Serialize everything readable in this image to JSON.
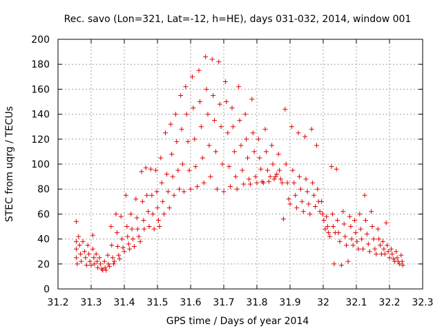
{
  "chart_data": {
    "type": "scatter",
    "title": "Rec. savo (Lon=321, Lat=-12, h=HE), days 031-032, 2014, window 001",
    "xlabel": "GPS time / Days of year 2014",
    "ylabel": "STEC from uqrg / TECUs",
    "xlim": [
      31.2,
      32.3
    ],
    "ylim": [
      0,
      200
    ],
    "xticks": [
      "31.2",
      "31.3",
      "31.4",
      "31.5",
      "31.6",
      "31.7",
      "31.8",
      "31.9",
      "32",
      "32.1",
      "32.2",
      "32.3"
    ],
    "yticks": [
      "0",
      "20",
      "40",
      "60",
      "80",
      "100",
      "120",
      "140",
      "160",
      "180",
      "200"
    ],
    "grid": true,
    "marker": "+",
    "series_color": "#e00000",
    "points": [
      [
        31.255,
        54
      ],
      [
        31.255,
        38
      ],
      [
        31.255,
        32
      ],
      [
        31.255,
        25
      ],
      [
        31.258,
        20
      ],
      [
        31.262,
        42
      ],
      [
        31.265,
        35
      ],
      [
        31.268,
        28
      ],
      [
        31.27,
        22
      ],
      [
        31.275,
        38
      ],
      [
        31.28,
        30
      ],
      [
        31.283,
        25
      ],
      [
        31.286,
        19
      ],
      [
        31.29,
        35
      ],
      [
        31.293,
        28
      ],
      [
        31.296,
        22
      ],
      [
        31.3,
        19
      ],
      [
        31.305,
        43
      ],
      [
        31.305,
        32
      ],
      [
        31.308,
        25
      ],
      [
        31.31,
        20
      ],
      [
        31.315,
        28
      ],
      [
        31.318,
        22
      ],
      [
        31.32,
        17
      ],
      [
        31.325,
        25
      ],
      [
        31.328,
        20
      ],
      [
        31.332,
        16
      ],
      [
        31.335,
        15
      ],
      [
        31.34,
        22
      ],
      [
        31.342,
        17
      ],
      [
        31.345,
        15
      ],
      [
        31.35,
        27
      ],
      [
        31.352,
        20
      ],
      [
        31.355,
        18
      ],
      [
        31.36,
        50
      ],
      [
        31.362,
        35
      ],
      [
        31.365,
        25
      ],
      [
        31.368,
        20
      ],
      [
        31.37,
        22
      ],
      [
        31.375,
        60
      ],
      [
        31.378,
        45
      ],
      [
        31.38,
        34
      ],
      [
        31.383,
        27
      ],
      [
        31.386,
        24
      ],
      [
        31.39,
        58
      ],
      [
        31.393,
        40
      ],
      [
        31.396,
        33
      ],
      [
        31.4,
        30
      ],
      [
        31.405,
        75
      ],
      [
        31.408,
        50
      ],
      [
        31.41,
        42
      ],
      [
        31.413,
        36
      ],
      [
        31.416,
        32
      ],
      [
        31.42,
        60
      ],
      [
        31.423,
        48
      ],
      [
        31.426,
        40
      ],
      [
        31.43,
        34
      ],
      [
        31.435,
        72
      ],
      [
        31.438,
        57
      ],
      [
        31.44,
        48
      ],
      [
        31.444,
        42
      ],
      [
        31.448,
        38
      ],
      [
        31.452,
        94
      ],
      [
        31.455,
        70
      ],
      [
        31.458,
        55
      ],
      [
        31.46,
        48
      ],
      [
        31.465,
        97
      ],
      [
        31.468,
        75
      ],
      [
        31.472,
        62
      ],
      [
        31.475,
        50
      ],
      [
        31.48,
        96
      ],
      [
        31.483,
        75
      ],
      [
        31.486,
        60
      ],
      [
        31.49,
        48
      ],
      [
        31.495,
        95
      ],
      [
        31.498,
        78
      ],
      [
        31.5,
        65
      ],
      [
        31.503,
        55
      ],
      [
        31.506,
        50
      ],
      [
        31.51,
        105
      ],
      [
        31.513,
        85
      ],
      [
        31.516,
        70
      ],
      [
        31.52,
        60
      ],
      [
        31.524,
        125
      ],
      [
        31.528,
        92
      ],
      [
        31.532,
        78
      ],
      [
        31.536,
        65
      ],
      [
        31.54,
        132
      ],
      [
        31.543,
        108
      ],
      [
        31.546,
        90
      ],
      [
        31.55,
        75
      ],
      [
        31.555,
        140
      ],
      [
        31.558,
        118
      ],
      [
        31.562,
        95
      ],
      [
        31.566,
        80
      ],
      [
        31.57,
        155
      ],
      [
        31.573,
        128
      ],
      [
        31.576,
        100
      ],
      [
        31.58,
        78
      ],
      [
        31.585,
        162
      ],
      [
        31.588,
        140
      ],
      [
        31.592,
        118
      ],
      [
        31.596,
        95
      ],
      [
        31.6,
        80
      ],
      [
        31.605,
        170
      ],
      [
        31.608,
        145
      ],
      [
        31.612,
        120
      ],
      [
        31.615,
        98
      ],
      [
        31.62,
        82
      ],
      [
        31.625,
        175
      ],
      [
        31.628,
        150
      ],
      [
        31.632,
        130
      ],
      [
        31.636,
        105
      ],
      [
        31.64,
        85
      ],
      [
        31.645,
        186
      ],
      [
        31.648,
        160
      ],
      [
        31.652,
        140
      ],
      [
        31.656,
        115
      ],
      [
        31.66,
        90
      ],
      [
        31.665,
        184
      ],
      [
        31.668,
        155
      ],
      [
        31.672,
        135
      ],
      [
        31.676,
        110
      ],
      [
        31.68,
        80
      ],
      [
        31.685,
        182
      ],
      [
        31.688,
        148
      ],
      [
        31.692,
        130
      ],
      [
        31.696,
        100
      ],
      [
        31.7,
        78
      ],
      [
        31.705,
        166
      ],
      [
        31.708,
        150
      ],
      [
        31.712,
        125
      ],
      [
        31.716,
        98
      ],
      [
        31.72,
        82
      ],
      [
        31.725,
        145
      ],
      [
        31.728,
        130
      ],
      [
        31.732,
        110
      ],
      [
        31.736,
        90
      ],
      [
        31.74,
        80
      ],
      [
        31.745,
        162
      ],
      [
        31.748,
        135
      ],
      [
        31.752,
        115
      ],
      [
        31.756,
        95
      ],
      [
        31.76,
        84
      ],
      [
        31.765,
        140
      ],
      [
        31.768,
        120
      ],
      [
        31.772,
        105
      ],
      [
        31.776,
        88
      ],
      [
        31.78,
        84
      ],
      [
        31.785,
        152
      ],
      [
        31.788,
        125
      ],
      [
        31.792,
        110
      ],
      [
        31.796,
        90
      ],
      [
        31.8,
        85
      ],
      [
        31.805,
        120
      ],
      [
        31.808,
        105
      ],
      [
        31.812,
        96
      ],
      [
        31.816,
        86
      ],
      [
        31.82,
        85
      ],
      [
        31.825,
        128
      ],
      [
        31.828,
        110
      ],
      [
        31.832,
        95
      ],
      [
        31.836,
        86
      ],
      [
        31.84,
        90
      ],
      [
        31.845,
        115
      ],
      [
        31.848,
        100
      ],
      [
        31.852,
        88
      ],
      [
        31.856,
        90
      ],
      [
        31.86,
        92
      ],
      [
        31.865,
        108
      ],
      [
        31.868,
        95
      ],
      [
        31.872,
        88
      ],
      [
        31.876,
        85
      ],
      [
        31.88,
        56
      ],
      [
        31.885,
        144
      ],
      [
        31.888,
        100
      ],
      [
        31.892,
        85
      ],
      [
        31.896,
        72
      ],
      [
        31.9,
        68
      ],
      [
        31.905,
        130
      ],
      [
        31.908,
        95
      ],
      [
        31.912,
        85
      ],
      [
        31.916,
        75
      ],
      [
        31.92,
        65
      ],
      [
        31.925,
        125
      ],
      [
        31.928,
        90
      ],
      [
        31.932,
        80
      ],
      [
        31.936,
        70
      ],
      [
        31.94,
        62
      ],
      [
        31.945,
        122
      ],
      [
        31.948,
        88
      ],
      [
        31.952,
        78
      ],
      [
        31.956,
        68
      ],
      [
        31.96,
        60
      ],
      [
        31.965,
        128
      ],
      [
        31.968,
        85
      ],
      [
        31.972,
        75
      ],
      [
        31.976,
        66
      ],
      [
        31.98,
        115
      ],
      [
        31.983,
        80
      ],
      [
        31.986,
        70
      ],
      [
        31.99,
        62
      ],
      [
        31.995,
        70
      ],
      [
        31.998,
        60
      ],
      [
        32.002,
        55
      ],
      [
        32.006,
        48
      ],
      [
        32.01,
        58
      ],
      [
        32.013,
        50
      ],
      [
        32.016,
        45
      ],
      [
        32.02,
        42
      ],
      [
        32.025,
        98
      ],
      [
        32.028,
        60
      ],
      [
        32.03,
        50
      ],
      [
        32.033,
        20
      ],
      [
        32.036,
        45
      ],
      [
        32.04,
        96
      ],
      [
        32.043,
        55
      ],
      [
        32.046,
        45
      ],
      [
        32.05,
        38
      ],
      [
        32.055,
        19
      ],
      [
        32.06,
        62
      ],
      [
        32.063,
        52
      ],
      [
        32.066,
        42
      ],
      [
        32.07,
        35
      ],
      [
        32.075,
        22
      ],
      [
        32.08,
        58
      ],
      [
        32.083,
        50
      ],
      [
        32.086,
        40
      ],
      [
        32.09,
        35
      ],
      [
        32.095,
        55
      ],
      [
        32.098,
        45
      ],
      [
        32.102,
        38
      ],
      [
        32.106,
        32
      ],
      [
        32.11,
        60
      ],
      [
        32.113,
        48
      ],
      [
        32.116,
        40
      ],
      [
        32.12,
        32
      ],
      [
        32.125,
        75
      ],
      [
        32.128,
        55
      ],
      [
        32.132,
        44
      ],
      [
        32.136,
        36
      ],
      [
        32.14,
        30
      ],
      [
        32.145,
        62
      ],
      [
        32.148,
        50
      ],
      [
        32.152,
        40
      ],
      [
        32.156,
        32
      ],
      [
        32.16,
        28
      ],
      [
        32.165,
        48
      ],
      [
        32.168,
        40
      ],
      [
        32.172,
        35
      ],
      [
        32.176,
        28
      ],
      [
        32.18,
        38
      ],
      [
        32.183,
        32
      ],
      [
        32.186,
        28
      ],
      [
        32.19,
        53
      ],
      [
        32.193,
        35
      ],
      [
        32.196,
        30
      ],
      [
        32.2,
        25
      ],
      [
        32.205,
        32
      ],
      [
        32.208,
        28
      ],
      [
        32.212,
        24
      ],
      [
        32.216,
        22
      ],
      [
        32.22,
        30
      ],
      [
        32.223,
        25
      ],
      [
        32.226,
        22
      ],
      [
        32.23,
        20
      ],
      [
        32.235,
        27
      ],
      [
        32.238,
        22
      ],
      [
        32.24,
        19
      ]
    ]
  }
}
